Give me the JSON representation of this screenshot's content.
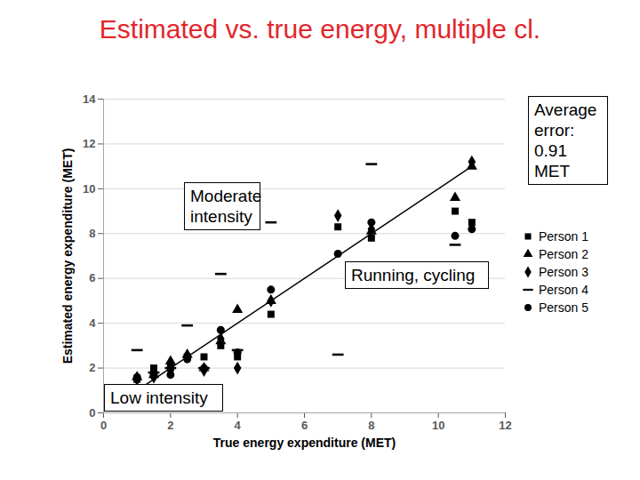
{
  "chart_data": {
    "type": "scatter",
    "title": "Estimated vs. true energy, multiple cl.",
    "x_label": "True energy expenditure (MET)",
    "y_label": "Estimated energy expenditure (MET)",
    "xlim": [
      0,
      12
    ],
    "ylim": [
      0,
      14
    ],
    "xticks": [
      0,
      2,
      4,
      6,
      8,
      10,
      12
    ],
    "yticks": [
      0,
      2,
      4,
      6,
      8,
      10,
      12,
      14
    ],
    "grid": true,
    "legend": "right",
    "color": "#000000",
    "series": [
      {
        "name": "Person 1",
        "marker": "square",
        "x": [
          1,
          1.5,
          2,
          2.5,
          3,
          3.5,
          4,
          5,
          7,
          8,
          10.5,
          11
        ],
        "values": [
          1.5,
          2.0,
          2.1,
          2.5,
          2.5,
          3.0,
          2.5,
          4.4,
          8.3,
          7.8,
          9.0,
          8.5
        ]
      },
      {
        "name": "Person 2",
        "marker": "triangle",
        "x": [
          1,
          1.5,
          2,
          2.5,
          3,
          3.5,
          4,
          5,
          8,
          10.5,
          11
        ],
        "values": [
          1.6,
          1.7,
          2.3,
          2.6,
          2.0,
          3.2,
          4.6,
          5.0,
          8.1,
          9.6,
          11.0
        ]
      },
      {
        "name": "Person 3",
        "marker": "diamond",
        "x": [
          1,
          1.5,
          2,
          2.5,
          3,
          3.5,
          4,
          5,
          7,
          8,
          11
        ],
        "values": [
          1.5,
          1.6,
          1.9,
          2.5,
          1.9,
          3.3,
          2.0,
          5.0,
          8.8,
          8.2,
          11.2
        ]
      },
      {
        "name": "Person 4",
        "marker": "dash",
        "x": [
          1,
          1.5,
          2,
          2.5,
          3,
          3.5,
          4,
          5,
          7,
          8,
          10.5
        ],
        "values": [
          2.8,
          1.8,
          2.0,
          3.9,
          2.0,
          6.2,
          2.8,
          8.5,
          2.6,
          11.1,
          7.5
        ]
      },
      {
        "name": "Person 5",
        "marker": "circle",
        "x": [
          1,
          1.5,
          2,
          2.5,
          3,
          3.5,
          4,
          5,
          7,
          8,
          10.5,
          11
        ],
        "values": [
          1.6,
          1.7,
          1.7,
          2.4,
          2.0,
          3.7,
          2.7,
          5.5,
          7.1,
          8.5,
          7.9,
          8.2
        ]
      }
    ],
    "reference_line": {
      "x": [
        0.9,
        11
      ],
      "y": [
        0.9,
        11
      ]
    },
    "annotations": [
      "Average error: 0.91 MET",
      "Moderate intensity",
      "Running, cycling",
      "Low intensity"
    ]
  }
}
